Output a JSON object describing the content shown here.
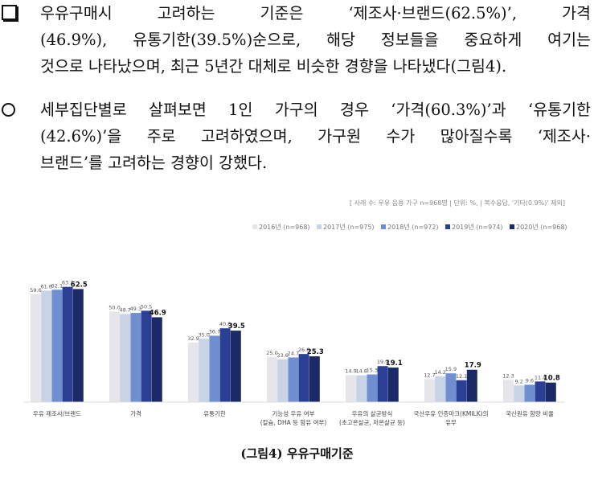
{
  "text": {
    "p1_lines": [
      "우유구매시 고려하는 기준은 ‘제조사·브랜드(62.5%)’, 가격",
      "(46.9%), 유통기한(39.5%)순으로, 해당 정보들을 중요하게 여기는",
      "것으로 나타났으며, 최근 5년간 대체로 비슷한 경향을 나타냈다(그림4)."
    ],
    "p2_lines": [
      "세부집단별로 살펴보면 1인 가구의 경우 ‘가격(60.3%)’과 ‘유통기한",
      "(42.6%)’을 주로 고려하였으며, 가구원 수가 많아질수록 ‘제조사·",
      "브랜드’를 고려하는 경향이 강했다."
    ]
  },
  "caption": "(그림4) 우유구매기준",
  "chart_data": {
    "type": "bar",
    "note": "[ 사례 수: 우유 음용 가구 n=968명 | 단위: %, | 복수응답, '기타(0.9%)' 제외]",
    "categories": [
      [
        "우유 제조사/브랜드"
      ],
      [
        "가격"
      ],
      [
        "유통기한"
      ],
      [
        "기능성 우유 여부",
        "(칼슘, DHA 등 함유 여부)"
      ],
      [
        "우유의 살균방식",
        "(초고온살균, 저온살균 등)"
      ],
      [
        "국산우유 인증마크(KMILK)의",
        "유무"
      ],
      [
        "국산원유 함량 비율"
      ]
    ],
    "series": [
      {
        "name": "2016년 (n=968)",
        "color": "#e6e6ea",
        "values": [
          59.6,
          50.0,
          32.9,
          25.0,
          14.9,
          12.7,
          12.3
        ]
      },
      {
        "name": "2017년 (n=975)",
        "color": "#c9d3e6",
        "values": [
          61.6,
          48.7,
          35.0,
          23.6,
          14.8,
          14.2,
          9.2
        ]
      },
      {
        "name": "2018년 (n=972)",
        "color": "#6f8fd0",
        "values": [
          62.1,
          49.3,
          36.7,
          24.7,
          15.3,
          15.9,
          9.6
        ]
      },
      {
        "name": "2019년 (n=974)",
        "color": "#2b3f94",
        "values": [
          63.7,
          50.5,
          40.8,
          26.6,
          19.9,
          12.1,
          11.4
        ]
      },
      {
        "name": "2020년 (n=968)",
        "color": "#1b2a66",
        "values": [
          62.5,
          46.9,
          39.5,
          25.3,
          19.1,
          17.9,
          10.8
        ]
      }
    ],
    "ylim": [
      0,
      80
    ],
    "legend_position": "top-right",
    "grid": false
  }
}
